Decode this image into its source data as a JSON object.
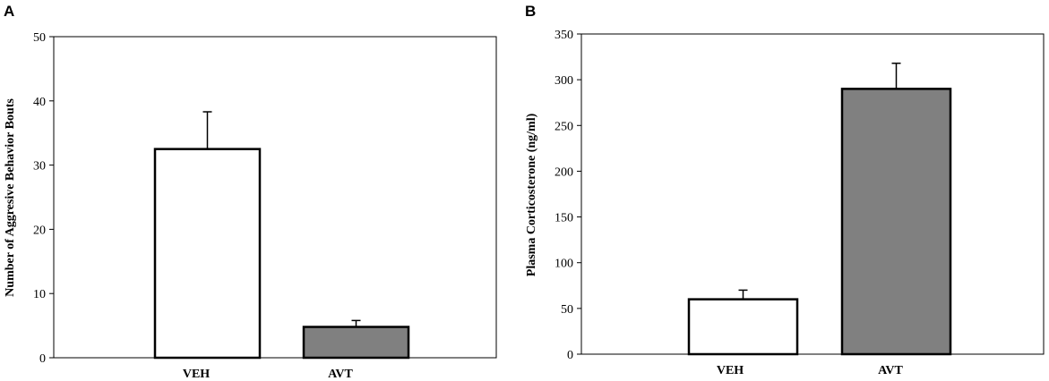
{
  "chart_data": [
    {
      "type": "bar",
      "panel_label": "A",
      "categories": [
        "VEH",
        "AVT"
      ],
      "values": [
        32.5,
        4.8
      ],
      "errors": [
        5.8,
        1.0
      ],
      "bar_colors": [
        "#ffffff",
        "#808080"
      ],
      "ylabel": "Number of Aggresive Behavior Bouts",
      "ylim": [
        0,
        50
      ],
      "yticks": [
        "0",
        "10",
        "20",
        "30",
        "40",
        "50"
      ],
      "grid": false
    },
    {
      "type": "bar",
      "panel_label": "B",
      "categories": [
        "VEH",
        "AVT"
      ],
      "values": [
        60,
        290
      ],
      "errors": [
        10,
        28
      ],
      "bar_colors": [
        "#ffffff",
        "#808080"
      ],
      "ylabel": "Plasma Corticosterone (ng/ml)",
      "ylim": [
        0,
        350
      ],
      "yticks": [
        "0",
        "50",
        "100",
        "150",
        "200",
        "250",
        "300",
        "350"
      ],
      "grid": false
    }
  ]
}
